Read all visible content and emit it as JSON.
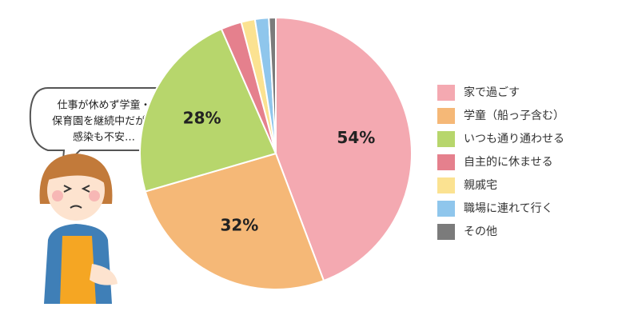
{
  "chart_data": {
    "type": "pie",
    "categories": [
      "家で過ごす",
      "学童（船っ子含む）",
      "いつも通り通わせる",
      "自主的に休ませる",
      "親戚宅",
      "職場に連れて行く",
      "その他"
    ],
    "values": [
      54,
      32,
      28,
      3,
      2,
      2,
      1
    ],
    "value_labels": [
      "54%",
      "32%",
      "28%",
      null,
      null,
      null,
      null
    ],
    "colors": [
      "#f4a9b1",
      "#f5b877",
      "#b7d66c",
      "#e5808d",
      "#fbe291",
      "#8fc6ec",
      "#7b7b7b"
    ],
    "legend": "right"
  },
  "bubble": {
    "lines": [
      "仕事が休めず学童・",
      "保育園を継続中だが、",
      "感染も不安…"
    ]
  }
}
